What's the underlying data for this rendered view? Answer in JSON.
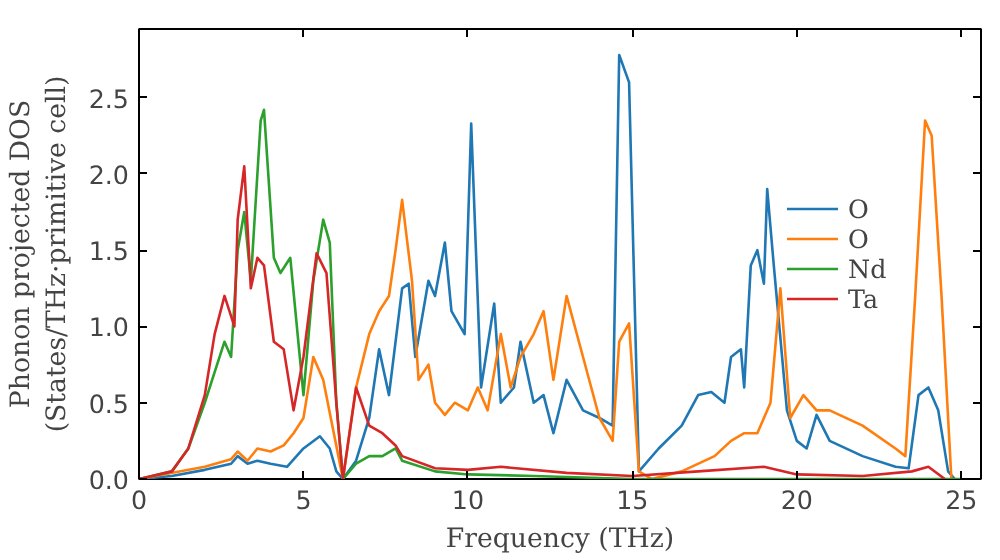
{
  "chart_data": {
    "type": "line",
    "xlabel": "Frequency (THz)",
    "ylabel": "Phonon projected DOS\n(States/THz·primitive cell)",
    "xlim": [
      0,
      25.6
    ],
    "ylim": [
      0,
      2.95
    ],
    "xticks": [
      0,
      5,
      10,
      15,
      20,
      25
    ],
    "yticks": [
      {
        "value": 0,
        "label": "0.0"
      },
      0.5,
      {
        "value": 1,
        "label": "1.0"
      },
      1.5,
      {
        "value": 2,
        "label": "2.0"
      },
      2.5
    ],
    "legend": "right",
    "grid": false,
    "series": [
      {
        "name": "O",
        "color": "#1f77b4",
        "x": [
          0,
          1,
          2,
          2.8,
          3,
          3.3,
          3.6,
          4,
          4.5,
          5,
          5.5,
          5.8,
          6,
          6.2,
          6.6,
          7,
          7.3,
          7.6,
          8,
          8.2,
          8.4,
          8.8,
          9,
          9.3,
          9.5,
          9.9,
          10.1,
          10.4,
          10.8,
          11,
          11.4,
          11.6,
          12,
          12.3,
          12.6,
          13,
          13.5,
          14,
          14.4,
          14.6,
          14.9,
          15.2,
          15.8,
          16.5,
          17,
          17.4,
          17.8,
          18,
          18.3,
          18.4,
          18.6,
          18.8,
          19,
          19.1,
          19.3,
          19.7,
          20,
          20.3,
          20.6,
          21,
          22,
          23,
          23.4,
          23.7,
          24,
          24.3,
          24.6,
          24.8
        ],
        "values": [
          0,
          0.02,
          0.06,
          0.1,
          0.15,
          0.1,
          0.12,
          0.1,
          0.08,
          0.2,
          0.28,
          0.2,
          0.05,
          0,
          0.12,
          0.4,
          0.85,
          0.55,
          1.25,
          1.28,
          0.8,
          1.3,
          1.2,
          1.55,
          1.1,
          0.95,
          2.33,
          0.6,
          1.15,
          0.5,
          0.6,
          0.9,
          0.5,
          0.55,
          0.3,
          0.65,
          0.45,
          0.4,
          0.35,
          2.78,
          2.6,
          0.05,
          0.2,
          0.35,
          0.55,
          0.57,
          0.5,
          0.8,
          0.85,
          0.6,
          1.4,
          1.5,
          1.28,
          1.9,
          1.4,
          0.45,
          0.25,
          0.2,
          0.42,
          0.25,
          0.15,
          0.08,
          0.07,
          0.55,
          0.6,
          0.45,
          0.05,
          0
        ]
      },
      {
        "name": "O",
        "color": "#ff7f0e",
        "x": [
          0,
          2,
          2.8,
          3,
          3.3,
          3.6,
          4,
          4.4,
          4.7,
          5,
          5.3,
          5.6,
          6.2,
          6.6,
          7,
          7.3,
          7.6,
          7.8,
          8,
          8.3,
          8.5,
          8.8,
          9,
          9.3,
          9.6,
          10,
          10.3,
          10.6,
          11,
          11.3,
          11.6,
          12,
          12.3,
          12.6,
          13,
          13.5,
          14,
          14.4,
          14.6,
          14.9,
          15.2,
          15.6,
          16.5,
          17.5,
          18,
          18.4,
          18.8,
          19.2,
          19.5,
          19.8,
          20.2,
          20.6,
          21,
          22,
          23,
          23.3,
          23.6,
          23.9,
          24.1,
          24.4,
          24.7
        ],
        "values": [
          0,
          0.08,
          0.13,
          0.18,
          0.12,
          0.2,
          0.18,
          0.22,
          0.3,
          0.4,
          0.8,
          0.65,
          0,
          0.6,
          0.95,
          1.1,
          1.2,
          1.5,
          1.83,
          1.3,
          0.65,
          0.75,
          0.5,
          0.42,
          0.5,
          0.45,
          0.6,
          0.45,
          0.95,
          0.6,
          0.8,
          0.95,
          1.1,
          0.65,
          1.2,
          0.8,
          0.4,
          0.25,
          0.9,
          1.02,
          0.05,
          0,
          0.05,
          0.15,
          0.25,
          0.3,
          0.3,
          0.5,
          1.25,
          0.4,
          0.55,
          0.45,
          0.45,
          0.35,
          0.2,
          0.15,
          1.2,
          2.35,
          2.25,
          1.2,
          0
        ]
      },
      {
        "name": "Nd",
        "color": "#2ca02c",
        "x": [
          0,
          1,
          1.5,
          2,
          2.3,
          2.6,
          2.8,
          3,
          3.2,
          3.4,
          3.7,
          3.8,
          4.1,
          4.3,
          4.6,
          5,
          5.3,
          5.6,
          5.8,
          6,
          6.2,
          6.6,
          7,
          7.4,
          7.8,
          8,
          9,
          10,
          12,
          15,
          20,
          25
        ],
        "values": [
          0,
          0.05,
          0.2,
          0.5,
          0.7,
          0.9,
          0.8,
          1.5,
          1.75,
          1.3,
          2.35,
          2.42,
          1.45,
          1.35,
          1.45,
          0.55,
          1.3,
          1.7,
          1.55,
          0.5,
          0,
          0.1,
          0.15,
          0.15,
          0.2,
          0.12,
          0.05,
          0.03,
          0.02,
          0,
          0,
          0
        ]
      },
      {
        "name": "Ta",
        "color": "#d62728",
        "x": [
          0,
          1,
          1.5,
          2,
          2.3,
          2.6,
          2.9,
          3,
          3.2,
          3.4,
          3.6,
          3.8,
          4.1,
          4.4,
          4.7,
          5,
          5.4,
          5.7,
          6,
          6.2,
          6.6,
          7,
          7.4,
          7.8,
          8,
          9,
          10,
          11,
          13,
          15,
          17,
          19,
          20,
          22,
          23.5,
          24,
          24.5
        ],
        "values": [
          0,
          0.05,
          0.2,
          0.55,
          0.95,
          1.2,
          1.0,
          1.7,
          2.05,
          1.25,
          1.45,
          1.4,
          0.9,
          0.85,
          0.45,
          0.8,
          1.48,
          1.35,
          0.5,
          0,
          0.6,
          0.35,
          0.3,
          0.22,
          0.15,
          0.07,
          0.06,
          0.08,
          0.04,
          0.02,
          0.05,
          0.08,
          0.03,
          0.02,
          0.05,
          0.08,
          0
        ]
      }
    ]
  }
}
